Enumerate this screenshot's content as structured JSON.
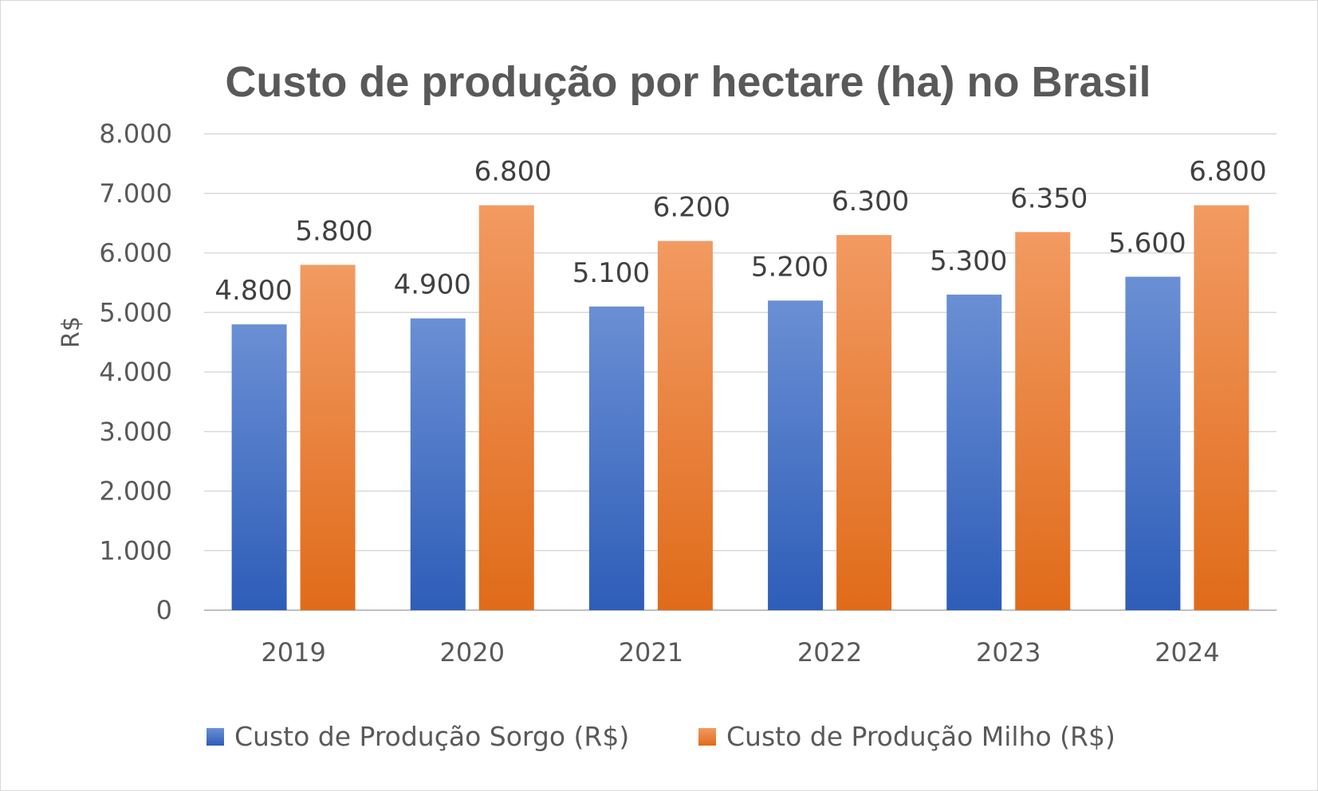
{
  "chart_data": {
    "type": "bar",
    "title": "Custo de produção por hectare (ha)  no Brasil",
    "ylabel": "R$",
    "xlabel": "",
    "categories": [
      "2019",
      "2020",
      "2021",
      "2022",
      "2023",
      "2024"
    ],
    "ylim": [
      0,
      8000
    ],
    "yticks": [
      0,
      1000,
      2000,
      3000,
      4000,
      5000,
      6000,
      7000,
      8000
    ],
    "ytick_labels": [
      "0",
      "1.000",
      "2.000",
      "3.000",
      "4.000",
      "5.000",
      "6.000",
      "7.000",
      "8.000"
    ],
    "grid": true,
    "legend_position": "bottom",
    "series": [
      {
        "name": "Custo de Produção Sorgo (R$)",
        "color": "#4472C4",
        "values": [
          4800,
          4900,
          5100,
          5200,
          5300,
          5600
        ],
        "labels": [
          "4.800",
          "4.900",
          "5.100",
          "5.200",
          "5.300",
          "5.600"
        ]
      },
      {
        "name": "Custo de Produção Milho (R$)",
        "color": "#ED7D31",
        "values": [
          5800,
          6800,
          6200,
          6300,
          6350,
          6800
        ],
        "labels": [
          "5.800",
          "6.800",
          "6.200",
          "6.300",
          "6.350",
          "6.800"
        ]
      }
    ]
  }
}
